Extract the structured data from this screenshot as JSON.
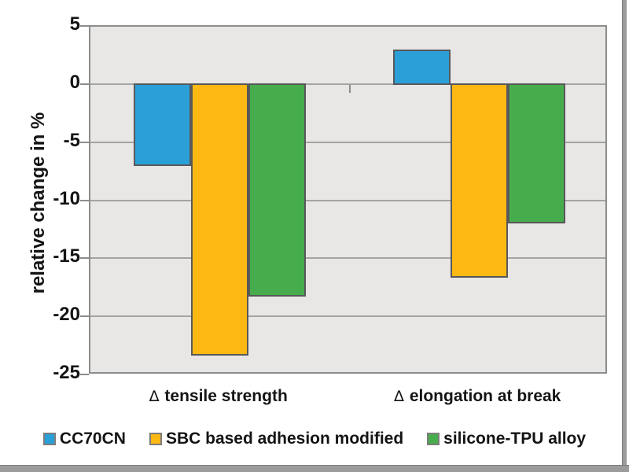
{
  "chart_data": {
    "type": "bar",
    "title": "",
    "ylabel": "relative change in %",
    "ylim": [
      -25,
      5
    ],
    "yticks": [
      5,
      0,
      -5,
      -10,
      -15,
      -20,
      -25
    ],
    "grid": true,
    "legend_position": "bottom",
    "category_marker": "∆",
    "categories": [
      "tensile strength",
      "elongation at break"
    ],
    "series": [
      {
        "name": "CC70CN",
        "color": "#2A9FD8",
        "values": [
          -7.0,
          2.9
        ]
      },
      {
        "name": "SBC based adhesion modified",
        "color": "#FDB813",
        "values": [
          -23.3,
          -16.6
        ]
      },
      {
        "name": "silicone-TPU alloy",
        "color": "#47AD4C",
        "values": [
          -18.2,
          -11.9
        ]
      }
    ],
    "colors": {
      "plot_background": "#E8E7E5",
      "gridline": "#A4A4A4",
      "plot_border": "#8C8C8C",
      "bar_border": "#58585A",
      "text": "#141414"
    }
  }
}
